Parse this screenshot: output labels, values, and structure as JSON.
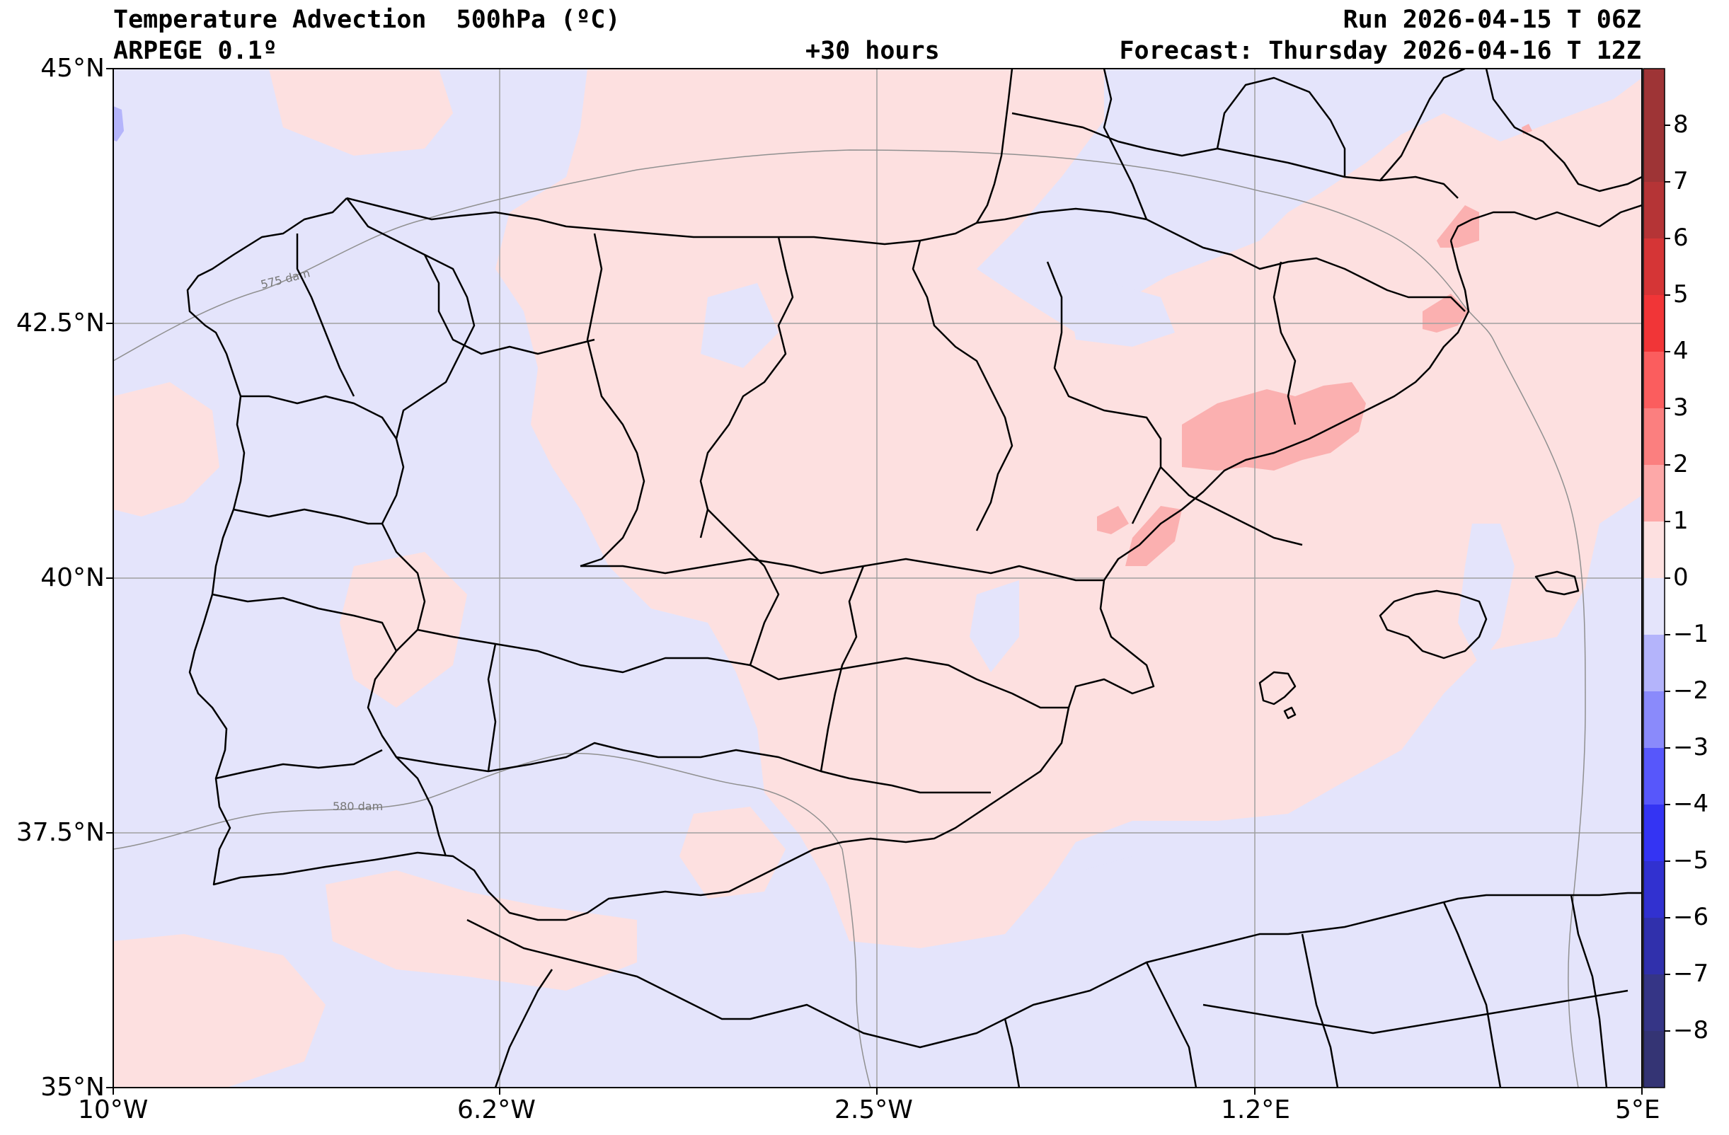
{
  "header": {
    "title": "Temperature Advection  500hPa (ºC)",
    "model": "ARPEGE 0.1º",
    "lead": "+30 hours",
    "run": "Run 2026-04-15 T 06Z",
    "forecast": "Forecast: Thursday 2026-04-16 T 12Z"
  },
  "map": {
    "lon_range": [
      -10,
      5
    ],
    "lat_range": [
      35,
      45
    ],
    "lon_ticks": [
      "10°W",
      "6.2°W",
      "2.5°W",
      "1.2°E",
      "5°E"
    ],
    "lat_ticks": [
      "45°N",
      "42.5°N",
      "40°N",
      "37.5°N",
      "35°N"
    ],
    "contour_labels": [
      "575 dam",
      "580 dam"
    ],
    "colors": {
      "positive_weak": "#fde0e0",
      "negative_weak": "#e4e4fb",
      "positive_mid": "#fbb0b0",
      "positive_strong": "#f59b9b",
      "border": "#000000",
      "grid": "#a0a0a0"
    }
  },
  "colorbar": {
    "ticks": [
      "8",
      "7",
      "6",
      "5",
      "4",
      "3",
      "2",
      "1",
      "0",
      "−1",
      "−2",
      "−3",
      "−4",
      "−5",
      "−6",
      "−7",
      "−8"
    ],
    "colors": [
      "#9e3436",
      "#b53436",
      "#d53536",
      "#f13537",
      "#fb5d5e",
      "#fb7f7f",
      "#fda8a8",
      "#fde0e0",
      "#e4e4fb",
      "#b4b4fb",
      "#8a8afb",
      "#5757fb",
      "#3434f3",
      "#3131d0",
      "#3030ac",
      "#353586",
      "#343474"
    ]
  }
}
